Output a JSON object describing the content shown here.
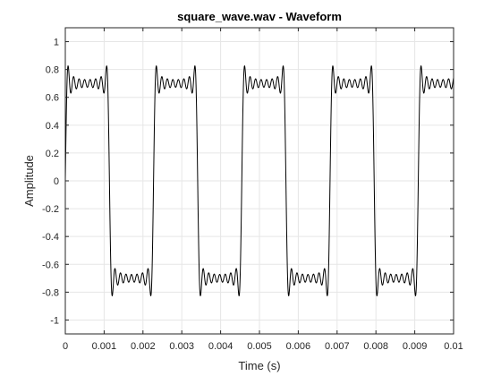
{
  "chart_data": {
    "type": "line",
    "title": "square_wave.wav - Waveform",
    "xlabel": "Time (s)",
    "ylabel": "Amplitude",
    "xlim": [
      0,
      0.01
    ],
    "ylim": [
      -1.1,
      1.1
    ],
    "grid": true,
    "xticks": [
      0,
      0.001,
      0.002,
      0.003,
      0.004,
      0.005,
      0.006,
      0.007,
      0.008,
      0.009,
      0.01
    ],
    "xtick_labels": [
      "0",
      "0.001",
      "0.002",
      "0.003",
      "0.004",
      "0.005",
      "0.006",
      "0.007",
      "0.008",
      "0.009",
      "0.01"
    ],
    "yticks": [
      -1,
      -0.8,
      -0.6,
      -0.4,
      -0.2,
      0,
      0.2,
      0.4,
      0.6,
      0.8,
      1
    ],
    "ytick_labels": [
      "-1",
      "-0.8",
      "-0.6",
      "-0.4",
      "-0.2",
      "0",
      "0.2",
      "0.4",
      "0.6",
      "0.8",
      "1"
    ],
    "series": [
      {
        "color": "#000000",
        "signal": {
          "shape": "band-limited square wave",
          "frequency_hz": 440,
          "harmonics": 15,
          "amplitude": 0.7,
          "phase_rad": 0
        }
      }
    ]
  },
  "colors": {
    "background": "#ffffff",
    "axes_border": "#262626",
    "grid": "#e6e6e6",
    "line": "#000000"
  }
}
